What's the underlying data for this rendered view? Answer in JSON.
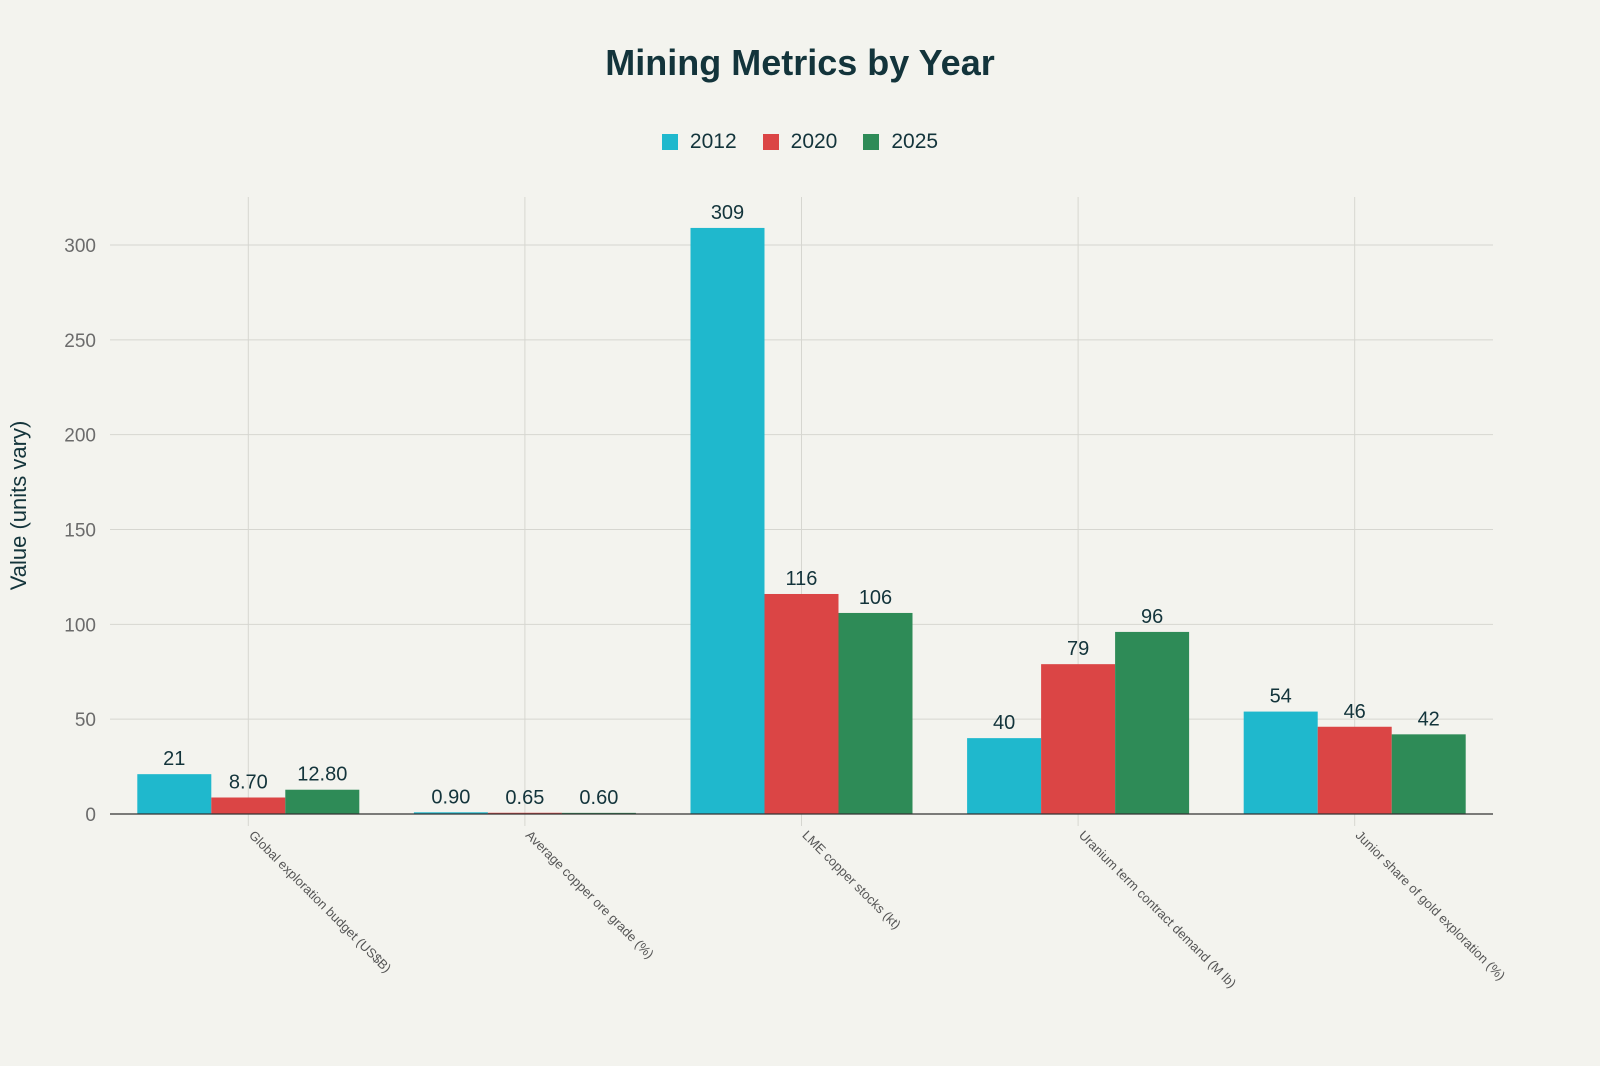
{
  "chart_data": {
    "type": "bar",
    "title": "Mining Metrics by Year",
    "xlabel": "",
    "ylabel": "Value (units vary)",
    "ylim": [
      0,
      325
    ],
    "yticks": [
      0,
      50,
      100,
      150,
      200,
      250,
      300
    ],
    "grid": true,
    "legend_position": "top-center",
    "categories": [
      "Global exploration budget (US$B)",
      "Average copper ore grade (%)",
      "LME copper stocks (kt)",
      "Uranium term contract demand (M lb)",
      "Junior share of gold exploration (%)"
    ],
    "series": [
      {
        "name": "2012",
        "color": "#1fb8cd",
        "values": [
          21,
          0.9,
          309,
          40,
          54
        ],
        "labels": [
          "21",
          "0.90",
          "309",
          "40",
          "54"
        ]
      },
      {
        "name": "2020",
        "color": "#db4545",
        "values": [
          8.7,
          0.65,
          116,
          79,
          46
        ],
        "labels": [
          "8.70",
          "0.65",
          "116",
          "79",
          "46"
        ]
      },
      {
        "name": "2025",
        "color": "#2e8b57",
        "values": [
          12.8,
          0.6,
          106,
          96,
          42
        ],
        "labels": [
          "12.80",
          "0.60",
          "106",
          "96",
          "42"
        ]
      }
    ]
  }
}
